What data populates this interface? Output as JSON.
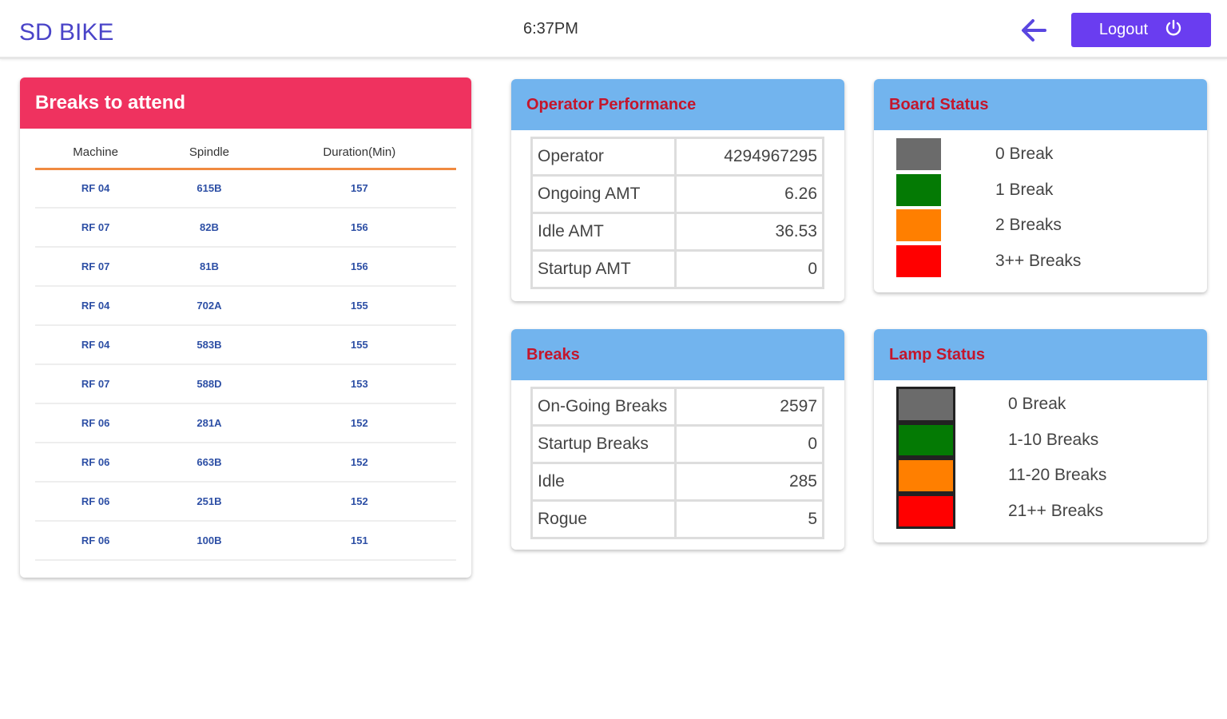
{
  "header": {
    "brand": "SD BIKE",
    "time": "6:37PM",
    "logout_label": "Logout"
  },
  "breaks_to_attend": {
    "title": "Breaks to attend",
    "columns": [
      "Machine",
      "Spindle",
      "Duration(Min)"
    ],
    "rows": [
      [
        "RF 04",
        "615B",
        "157"
      ],
      [
        "RF 07",
        "82B",
        "156"
      ],
      [
        "RF 07",
        "81B",
        "156"
      ],
      [
        "RF 04",
        "702A",
        "155"
      ],
      [
        "RF 04",
        "583B",
        "155"
      ],
      [
        "RF 07",
        "588D",
        "153"
      ],
      [
        "RF 06",
        "281A",
        "152"
      ],
      [
        "RF 06",
        "663B",
        "152"
      ],
      [
        "RF 06",
        "251B",
        "152"
      ],
      [
        "RF 06",
        "100B",
        "151"
      ]
    ]
  },
  "operator_performance": {
    "title": "Operator Performance",
    "rows": [
      [
        "Operator",
        "4294967295"
      ],
      [
        "Ongoing AMT",
        "6.26"
      ],
      [
        "Idle AMT",
        "36.53"
      ],
      [
        "Startup AMT",
        "0"
      ]
    ]
  },
  "breaks": {
    "title": "Breaks",
    "rows": [
      [
        "On-Going Breaks",
        "2597"
      ],
      [
        "Startup Breaks",
        "0"
      ],
      [
        "Idle",
        "285"
      ],
      [
        "Rogue",
        "5"
      ]
    ]
  },
  "board_status": {
    "title": "Board Status",
    "items": [
      {
        "label": "0 Break",
        "color": "#6b6b6b"
      },
      {
        "label": "1 Break",
        "color": "#047a04"
      },
      {
        "label": "2 Breaks",
        "color": "#ff7f00"
      },
      {
        "label": "3++ Breaks",
        "color": "#ff0000"
      }
    ]
  },
  "lamp_status": {
    "title": "Lamp Status",
    "items": [
      {
        "label": "0 Break",
        "color": "#6b6b6b"
      },
      {
        "label": "1-10 Breaks",
        "color": "#047a04"
      },
      {
        "label": "11-20 Breaks",
        "color": "#ff7f00"
      },
      {
        "label": "21++ Breaks",
        "color": "#ff0000"
      }
    ]
  }
}
